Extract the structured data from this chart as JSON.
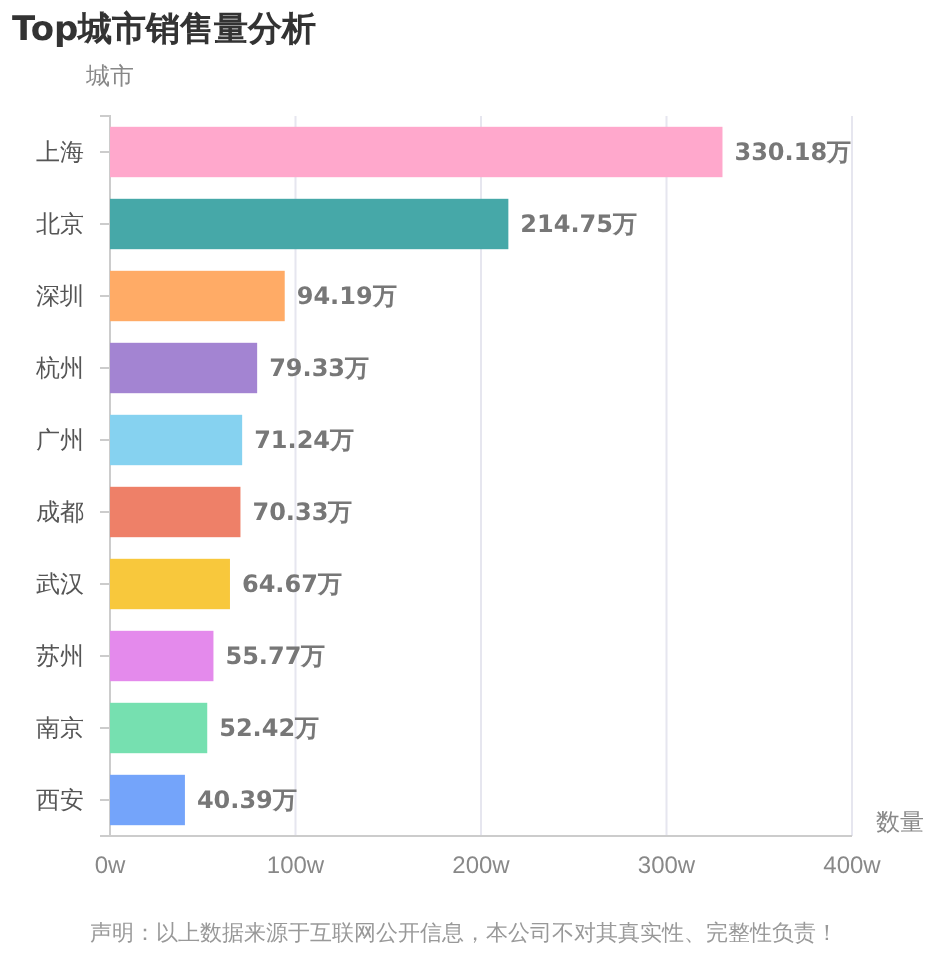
{
  "chart_data": {
    "type": "bar",
    "orientation": "horizontal",
    "title": "Top城市销售量分析",
    "ylabel": "城市",
    "xlabel": "数量",
    "categories": [
      "上海",
      "北京",
      "深圳",
      "杭州",
      "广州",
      "成都",
      "武汉",
      "苏州",
      "南京",
      "西安"
    ],
    "values": [
      330.18,
      214.75,
      94.19,
      79.33,
      71.24,
      70.33,
      64.67,
      55.77,
      52.42,
      40.39
    ],
    "colors": [
      "#ffa8cc",
      "#46a8a8",
      "#ffab66",
      "#a384d2",
      "#86d2f0",
      "#ee8068",
      "#f8c83c",
      "#e48aec",
      "#76e0b0",
      "#74a4fa"
    ],
    "value_labels": [
      "330.18万",
      "214.75万",
      "94.19万",
      "79.33万",
      "71.24万",
      "70.33万",
      "64.67万",
      "55.77万",
      "52.42万",
      "40.39万"
    ],
    "xlim": [
      0,
      400
    ],
    "xticks": [
      {
        "value": 0,
        "label": "0w"
      },
      {
        "value": 100,
        "label": "100w"
      },
      {
        "value": 200,
        "label": "200w"
      },
      {
        "value": 300,
        "label": "300w"
      },
      {
        "value": 400,
        "label": "400w"
      }
    ],
    "grid": "x",
    "annotations": [
      "声明：以上数据来源于互联网公开信息，本公司不对其真实性、完整性负责！"
    ]
  }
}
